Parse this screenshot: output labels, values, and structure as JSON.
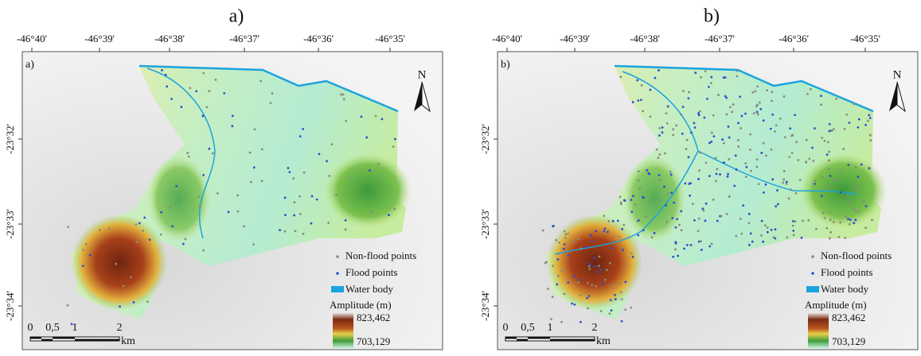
{
  "panels": [
    {
      "title": "a)",
      "corner_label": "a)",
      "lon_ticks": [
        "-46°40'",
        "-46°39'",
        "-46°38'",
        "-46°37'",
        "-46°36'",
        "-46°35'"
      ],
      "lat_ticks": [
        "-23°32'",
        "-23°33'",
        "-23°34'"
      ],
      "north": "N",
      "legend": {
        "non_flood": "Non-flood points",
        "flood": "Flood points",
        "water": "Water body",
        "amplitude_title": "Amplitude (m)",
        "amplitude_max": "823,462",
        "amplitude_min": "703,129"
      },
      "scale_bar": {
        "labels": [
          "0",
          "0,5",
          "1",
          "2"
        ],
        "unit": "km"
      }
    },
    {
      "title": "b)",
      "corner_label": "b)",
      "lon_ticks": [
        "-46°40'",
        "-46°39'",
        "-46°38'",
        "-46°37'",
        "-46°36'",
        "-46°35'"
      ],
      "lat_ticks": [
        "-23°32'",
        "-23°33'",
        "-23°34'"
      ],
      "north": "N",
      "legend": {
        "non_flood": "Non-flood points",
        "flood": "Flood points",
        "water": "Water body",
        "amplitude_title": "Amplitude (m)",
        "amplitude_max": "823,462",
        "amplitude_min": "703,129"
      },
      "scale_bar": {
        "labels": [
          "0",
          "0,5",
          "1",
          "2"
        ],
        "unit": "km"
      }
    }
  ]
}
